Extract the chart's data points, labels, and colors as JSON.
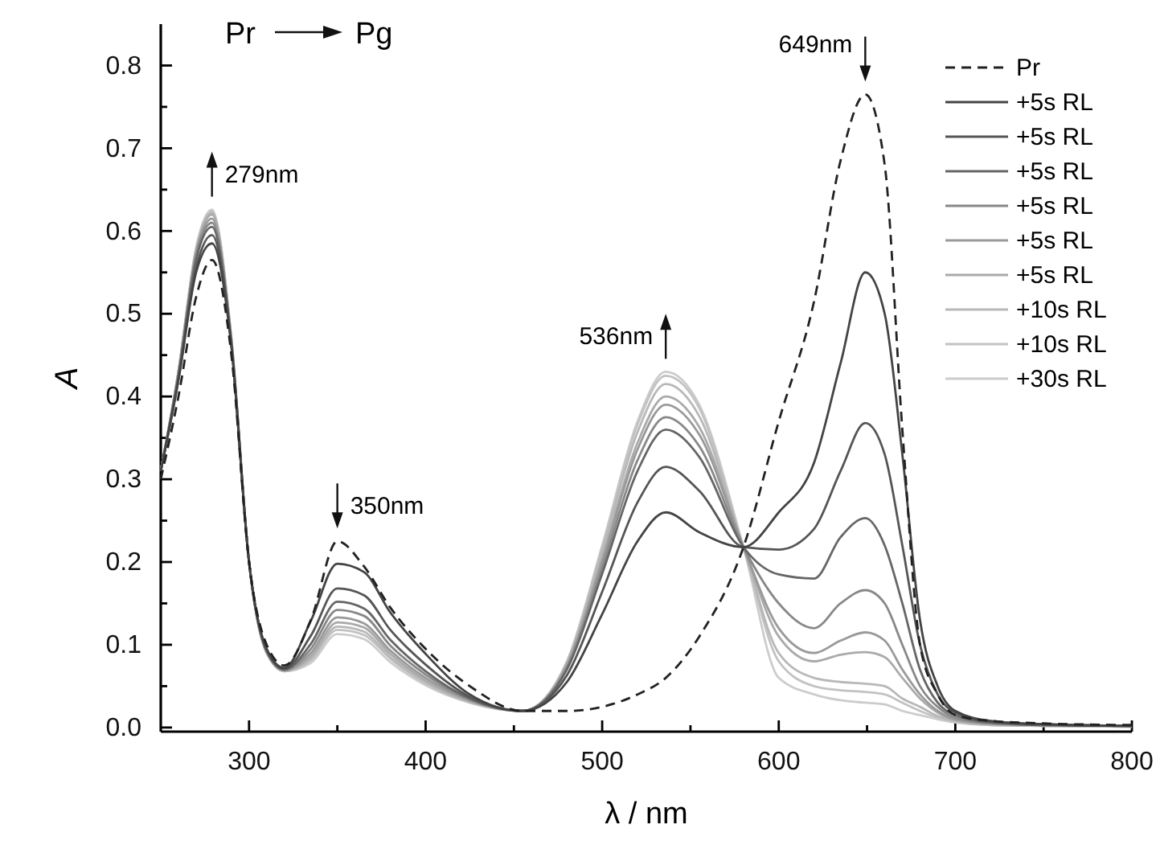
{
  "chart_data": {
    "type": "line",
    "xlabel": "λ / nm",
    "ylabel": "A",
    "x": [
      250,
      260,
      270,
      279,
      290,
      300,
      310,
      320,
      335,
      350,
      365,
      380,
      400,
      425,
      455,
      480,
      500,
      520,
      536,
      555,
      580,
      600,
      620,
      635,
      649,
      660,
      670,
      680,
      690,
      700,
      720,
      750,
      800
    ],
    "xlim": [
      250,
      800
    ],
    "xticks": [
      300,
      {
        "value": 350,
        "label": null
      },
      400,
      {
        "value": 450,
        "label": null
      },
      500,
      {
        "value": 550,
        "label": null
      },
      600,
      {
        "value": 650,
        "label": null
      },
      700,
      {
        "value": 750,
        "label": null
      },
      800
    ],
    "ylim": [
      -0.005,
      0.85
    ],
    "yticks": [
      {
        "value": 0,
        "label": "0.0"
      },
      {
        "value": 0.05,
        "label": null
      },
      {
        "value": 0.1,
        "label": "0.1"
      },
      {
        "value": 0.15,
        "label": null
      },
      {
        "value": 0.2,
        "label": "0.2"
      },
      {
        "value": 0.25,
        "label": null
      },
      {
        "value": 0.3,
        "label": "0.3"
      },
      {
        "value": 0.35,
        "label": null
      },
      {
        "value": 0.4,
        "label": "0.4"
      },
      {
        "value": 0.45,
        "label": null
      },
      {
        "value": 0.5,
        "label": "0.5"
      },
      {
        "value": 0.55,
        "label": null
      },
      {
        "value": 0.6,
        "label": "0.6"
      },
      {
        "value": 0.65,
        "label": null
      },
      {
        "value": 0.7,
        "label": "0.7"
      },
      {
        "value": 0.75,
        "label": null
      },
      {
        "value": 0.8,
        "label": "0.8"
      }
    ],
    "grid": false,
    "legend": "top right",
    "line_style": "solid",
    "annotations": [
      "Pr",
      "Pg",
      {
        "text": "279nm",
        "x": 279,
        "y": 0.626
      },
      {
        "text": "350nm",
        "x": 350,
        "y": 0.225
      },
      {
        "text": "536nm",
        "x": 536,
        "y": 0.43
      },
      {
        "text": "649nm",
        "x": 649,
        "y": 0.765
      }
    ],
    "series": [
      {
        "name": "Pr",
        "color": "#222222",
        "line_style": "dashed",
        "values": [
          0.3,
          0.4,
          0.52,
          0.565,
          0.45,
          0.2,
          0.1,
          0.075,
          0.13,
          0.225,
          0.195,
          0.145,
          0.095,
          0.05,
          0.02,
          0.02,
          0.025,
          0.04,
          0.06,
          0.11,
          0.218,
          0.37,
          0.515,
          0.685,
          0.765,
          0.68,
          0.36,
          0.1,
          0.04,
          0.015,
          0.008,
          0.005,
          0.003
        ]
      },
      {
        "name": "+5s RL",
        "color": "#444444",
        "values": [
          0.31,
          0.42,
          0.55,
          0.585,
          0.46,
          0.2,
          0.095,
          0.072,
          0.129,
          0.198,
          0.188,
          0.139,
          0.089,
          0.04,
          0.02,
          0.055,
          0.137,
          0.225,
          0.26,
          0.236,
          0.218,
          0.26,
          0.32,
          0.44,
          0.55,
          0.5,
          0.33,
          0.13,
          0.05,
          0.02,
          0.008,
          0.004,
          0.002
        ]
      },
      {
        "name": "+5s RL",
        "color": "#555555",
        "values": [
          0.31,
          0.42,
          0.555,
          0.595,
          0.462,
          0.2,
          0.094,
          0.071,
          0.111,
          0.168,
          0.16,
          0.118,
          0.076,
          0.037,
          0.02,
          0.063,
          0.164,
          0.272,
          0.315,
          0.286,
          0.218,
          0.215,
          0.24,
          0.31,
          0.368,
          0.33,
          0.22,
          0.1,
          0.04,
          0.018,
          0.007,
          0.004,
          0.002
        ]
      },
      {
        "name": "+5s RL",
        "color": "#666666",
        "values": [
          0.31,
          0.425,
          0.565,
          0.605,
          0.464,
          0.2,
          0.093,
          0.07,
          0.101,
          0.152,
          0.144,
          0.106,
          0.068,
          0.035,
          0.02,
          0.07,
          0.186,
          0.31,
          0.36,
          0.327,
          0.218,
          0.185,
          0.18,
          0.23,
          0.253,
          0.22,
          0.15,
          0.07,
          0.03,
          0.015,
          0.006,
          0.003,
          0.002
        ]
      },
      {
        "name": "+5s RL",
        "color": "#888888",
        "values": [
          0.31,
          0.425,
          0.57,
          0.61,
          0.465,
          0.2,
          0.092,
          0.07,
          0.095,
          0.142,
          0.135,
          0.099,
          0.064,
          0.034,
          0.02,
          0.072,
          0.193,
          0.323,
          0.375,
          0.34,
          0.218,
          0.15,
          0.12,
          0.15,
          0.166,
          0.15,
          0.1,
          0.05,
          0.025,
          0.012,
          0.005,
          0.003,
          0.002
        ]
      },
      {
        "name": "+5s RL",
        "color": "#999999",
        "values": [
          0.31,
          0.428,
          0.572,
          0.615,
          0.466,
          0.2,
          0.091,
          0.069,
          0.09,
          0.133,
          0.126,
          0.093,
          0.06,
          0.033,
          0.02,
          0.074,
          0.2,
          0.336,
          0.39,
          0.354,
          0.218,
          0.12,
          0.09,
          0.105,
          0.115,
          0.105,
          0.07,
          0.04,
          0.02,
          0.01,
          0.005,
          0.003,
          0.002
        ]
      },
      {
        "name": "+5s RL",
        "color": "#aaaaaa",
        "values": [
          0.31,
          0.43,
          0.575,
          0.62,
          0.468,
          0.2,
          0.091,
          0.069,
          0.086,
          0.127,
          0.121,
          0.089,
          0.057,
          0.032,
          0.02,
          0.076,
          0.205,
          0.344,
          0.4,
          0.363,
          0.218,
          0.11,
          0.08,
          0.088,
          0.091,
          0.085,
          0.06,
          0.035,
          0.018,
          0.009,
          0.004,
          0.003,
          0.002
        ]
      },
      {
        "name": "+10s RL",
        "color": "#b8b8b8",
        "values": [
          0.31,
          0.43,
          0.577,
          0.622,
          0.469,
          0.2,
          0.09,
          0.068,
          0.083,
          0.122,
          0.116,
          0.085,
          0.055,
          0.031,
          0.02,
          0.078,
          0.213,
          0.357,
          0.415,
          0.376,
          0.218,
          0.09,
          0.06,
          0.055,
          0.053,
          0.05,
          0.035,
          0.025,
          0.014,
          0.008,
          0.004,
          0.002,
          0.001
        ]
      },
      {
        "name": "+10s RL",
        "color": "#c2c2c2",
        "values": [
          0.31,
          0.43,
          0.578,
          0.624,
          0.47,
          0.2,
          0.09,
          0.068,
          0.081,
          0.118,
          0.112,
          0.083,
          0.053,
          0.03,
          0.02,
          0.079,
          0.218,
          0.366,
          0.425,
          0.386,
          0.218,
          0.08,
          0.05,
          0.045,
          0.043,
          0.04,
          0.03,
          0.02,
          0.012,
          0.007,
          0.003,
          0.002,
          0.001
        ]
      },
      {
        "name": "+30s RL",
        "color": "#cccccc",
        "values": [
          0.31,
          0.43,
          0.58,
          0.626,
          0.47,
          0.2,
          0.09,
          0.068,
          0.078,
          0.113,
          0.107,
          0.079,
          0.051,
          0.03,
          0.02,
          0.08,
          0.22,
          0.37,
          0.43,
          0.39,
          0.218,
          0.06,
          0.04,
          0.033,
          0.03,
          0.028,
          0.02,
          0.015,
          0.01,
          0.006,
          0.003,
          0.002,
          0.001
        ]
      }
    ]
  }
}
